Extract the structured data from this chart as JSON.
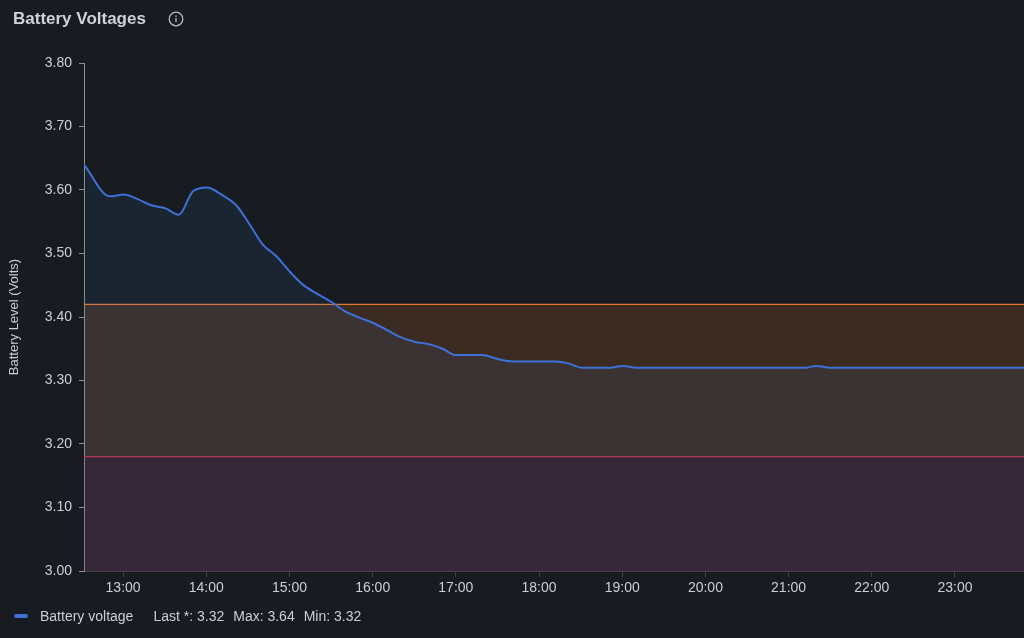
{
  "chart_data": {
    "type": "area",
    "title": "Battery Voltages",
    "ylabel": "Battery Level (Volts)",
    "x": [
      12.53,
      12.84,
      13.01,
      13.17,
      13.34,
      13.51,
      13.67,
      13.84,
      14.01,
      14.18,
      14.36,
      14.52,
      14.68,
      14.84,
      15.0,
      15.16,
      15.34,
      15.5,
      15.68,
      15.84,
      16.0,
      16.18,
      16.32,
      16.5,
      16.68,
      16.84,
      17.0,
      17.32,
      17.5,
      17.68,
      18.2,
      18.35,
      18.52,
      18.85,
      19.01,
      19.17,
      21.2,
      21.33,
      21.5,
      23.83
    ],
    "series": [
      {
        "name": "Battery voltage",
        "color": "#3d71d9",
        "values": [
          3.64,
          3.59,
          3.593,
          3.586,
          3.576,
          3.571,
          3.561,
          3.598,
          3.604,
          3.593,
          3.576,
          3.546,
          3.514,
          3.496,
          3.472,
          3.451,
          3.436,
          3.424,
          3.408,
          3.399,
          3.391,
          3.379,
          3.369,
          3.361,
          3.357,
          3.35,
          3.34,
          3.34,
          3.334,
          3.33,
          3.33,
          3.327,
          3.32,
          3.32,
          3.323,
          3.32,
          3.32,
          3.323,
          3.32,
          3.32
        ]
      }
    ],
    "xlim": [
      12.53,
      23.83
    ],
    "xticks": [
      {
        "value": 13,
        "label": "13:00"
      },
      {
        "value": 14,
        "label": "14:00"
      },
      {
        "value": 15,
        "label": "15:00"
      },
      {
        "value": 16,
        "label": "16:00"
      },
      {
        "value": 17,
        "label": "17:00"
      },
      {
        "value": 18,
        "label": "18:00"
      },
      {
        "value": 19,
        "label": "19:00"
      },
      {
        "value": 20,
        "label": "20:00"
      },
      {
        "value": 21,
        "label": "21:00"
      },
      {
        "value": 22,
        "label": "22:00"
      },
      {
        "value": 23,
        "label": "23:00"
      }
    ],
    "ylim": [
      3.0,
      3.8
    ],
    "yticks": [
      {
        "value": 3.0,
        "label": "3.00"
      },
      {
        "value": 3.1,
        "label": "3.10"
      },
      {
        "value": 3.2,
        "label": "3.20"
      },
      {
        "value": 3.3,
        "label": "3.30"
      },
      {
        "value": 3.4,
        "label": "3.40"
      },
      {
        "value": 3.5,
        "label": "3.50"
      },
      {
        "value": 3.6,
        "label": "3.60"
      },
      {
        "value": 3.7,
        "label": "3.70"
      },
      {
        "value": 3.8,
        "label": "3.80"
      }
    ],
    "bands": [
      {
        "axis": "y",
        "from": 3.18,
        "to": 3.42,
        "color": "#e0752d"
      },
      {
        "axis": "y",
        "from": 3.0,
        "to": 3.18,
        "color": "#c4314b"
      }
    ],
    "ref_lines": [
      {
        "axis": "y",
        "value": 3.42,
        "color": "#e0752d"
      },
      {
        "axis": "y",
        "value": 3.18,
        "color": "#c4314b"
      }
    ],
    "annotations": [
      "Last *: 3.32",
      "Max: 3.64",
      "Min: 3.32"
    ],
    "legend": "bottom",
    "marker": "none"
  }
}
